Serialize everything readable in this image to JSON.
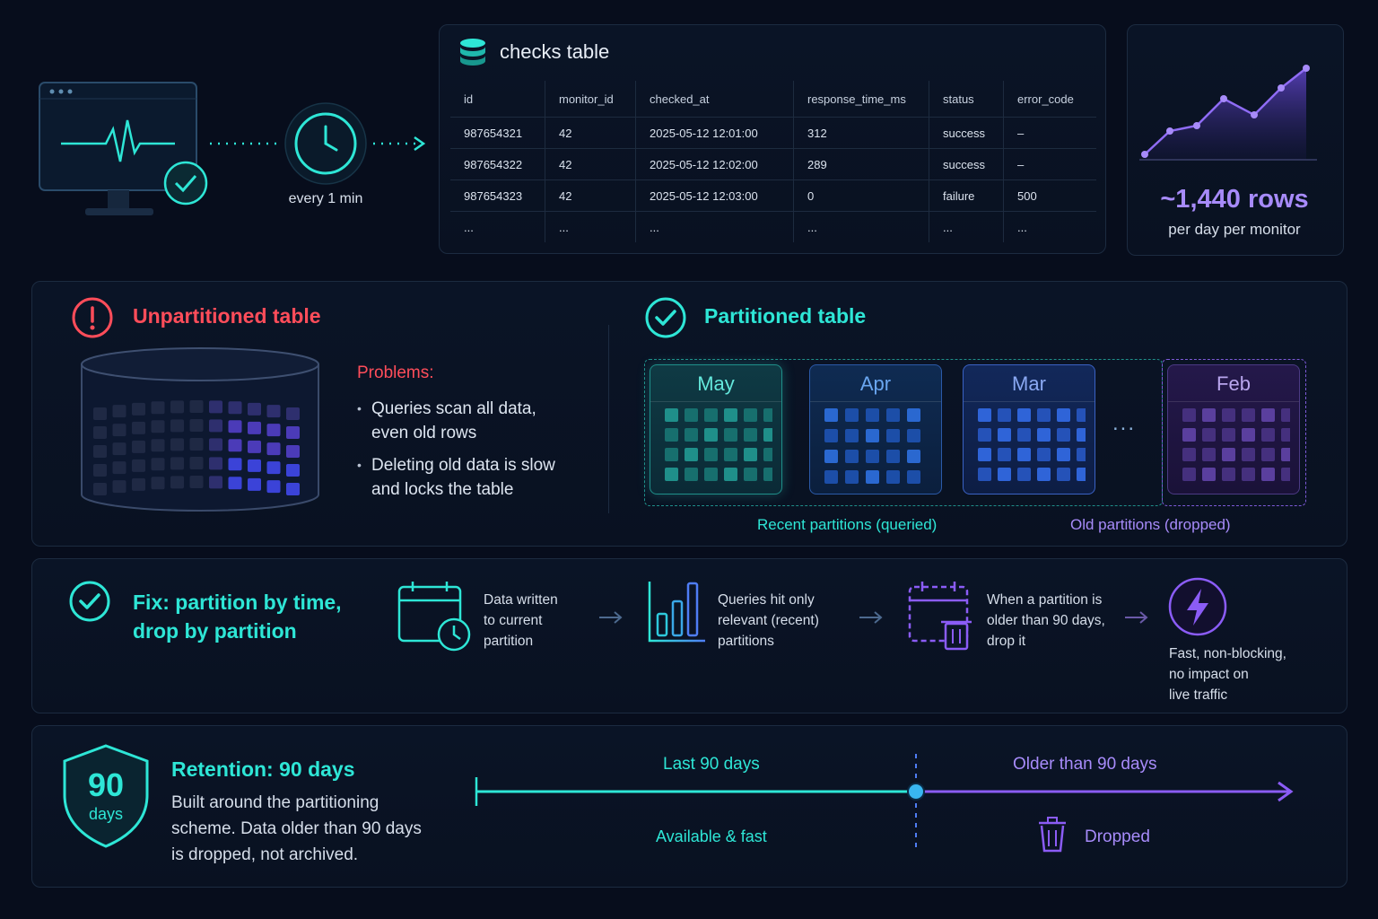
{
  "monitor": {
    "interval_label": "every 1 min"
  },
  "checks_table": {
    "title": "checks table",
    "columns": [
      "id",
      "monitor_id",
      "checked_at",
      "response_time_ms",
      "status",
      "error_code"
    ],
    "rows": [
      [
        "987654321",
        "42",
        "2025-05-12 12:01:00",
        "312",
        "success",
        "–"
      ],
      [
        "987654322",
        "42",
        "2025-05-12 12:02:00",
        "289",
        "success",
        "–"
      ],
      [
        "987654323",
        "42",
        "2025-05-12 12:03:00",
        "0",
        "failure",
        "500"
      ],
      [
        "...",
        "...",
        "...",
        "...",
        "...",
        "..."
      ]
    ]
  },
  "rows_stat": {
    "value": "~1,440 rows",
    "caption": "per day per monitor"
  },
  "unpartitioned": {
    "title": "Unpartitioned table",
    "problems_title": "Problems:",
    "problems": [
      "Queries scan all data, even old rows",
      "Deleting old data is slow and locks the table"
    ]
  },
  "partitioned": {
    "title": "Partitioned table",
    "months": [
      "May",
      "Apr",
      "Mar",
      "Feb"
    ],
    "ellipsis": "...",
    "recent_label": "Recent partitions (queried)",
    "old_label": "Old partitions (dropped)"
  },
  "fix": {
    "title_line1": "Fix: partition by time,",
    "title_line2": "drop by partition",
    "steps": [
      {
        "icon": "calendar-clock-icon",
        "lines": [
          "Data written",
          "to current",
          "partition"
        ]
      },
      {
        "icon": "bar-chart-icon",
        "lines": [
          "Queries hit only",
          "relevant (recent)",
          "partitions"
        ]
      },
      {
        "icon": "calendar-trash-icon",
        "lines": [
          "When a partition is",
          "older than 90 days,",
          "drop it"
        ]
      },
      {
        "icon": "lightning-icon",
        "lines": [
          "Fast, non-blocking,",
          "no impact on",
          "live traffic"
        ]
      }
    ]
  },
  "retention": {
    "badge_number": "90",
    "badge_unit": "days",
    "title": "Retention: 90 days",
    "desc_lines": [
      "Built around the partitioning",
      "scheme. Data older than 90 days",
      "is dropped, not archived."
    ],
    "last_label": "Last 90 days",
    "last_sub": "Available & fast",
    "older_label": "Older than 90 days",
    "older_sub": "Dropped"
  },
  "colors": {
    "teal": "#2ee6d6",
    "violet": "#a78bfa",
    "red": "#ff4d5a",
    "blue": "#4f7df5"
  }
}
